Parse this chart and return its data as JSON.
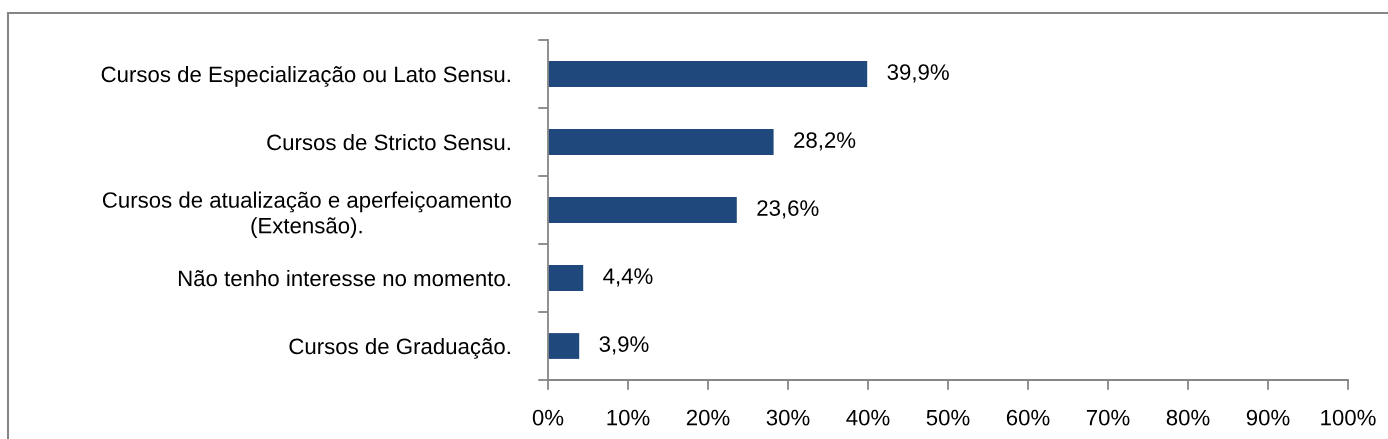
{
  "chart_data": {
    "type": "bar",
    "orientation": "horizontal",
    "categories": [
      "Cursos de Especialização ou Lato Sensu.",
      "Cursos de Stricto Sensu.",
      "Cursos de atualização e aperfeiçoamento\n(Extensão).",
      "Não tenho interesse no momento.",
      "Cursos de Graduação."
    ],
    "values": [
      39.9,
      28.2,
      23.6,
      4.4,
      3.9
    ],
    "value_labels": [
      "39,9%",
      "28,2%",
      "23,6%",
      "4,4%",
      "3,9%"
    ],
    "color": "#1f497d",
    "xlim": [
      0,
      100
    ],
    "xticks": [
      {
        "value": 0,
        "label": "0%"
      },
      {
        "value": 10,
        "label": "10%"
      },
      {
        "value": 20,
        "label": "20%"
      },
      {
        "value": 30,
        "label": "30%"
      },
      {
        "value": 40,
        "label": "40%"
      },
      {
        "value": 50,
        "label": "50%"
      },
      {
        "value": 60,
        "label": "60%"
      },
      {
        "value": 70,
        "label": "70%"
      },
      {
        "value": 80,
        "label": "80%"
      },
      {
        "value": 90,
        "label": "90%"
      },
      {
        "value": 100,
        "label": "100%"
      }
    ]
  }
}
